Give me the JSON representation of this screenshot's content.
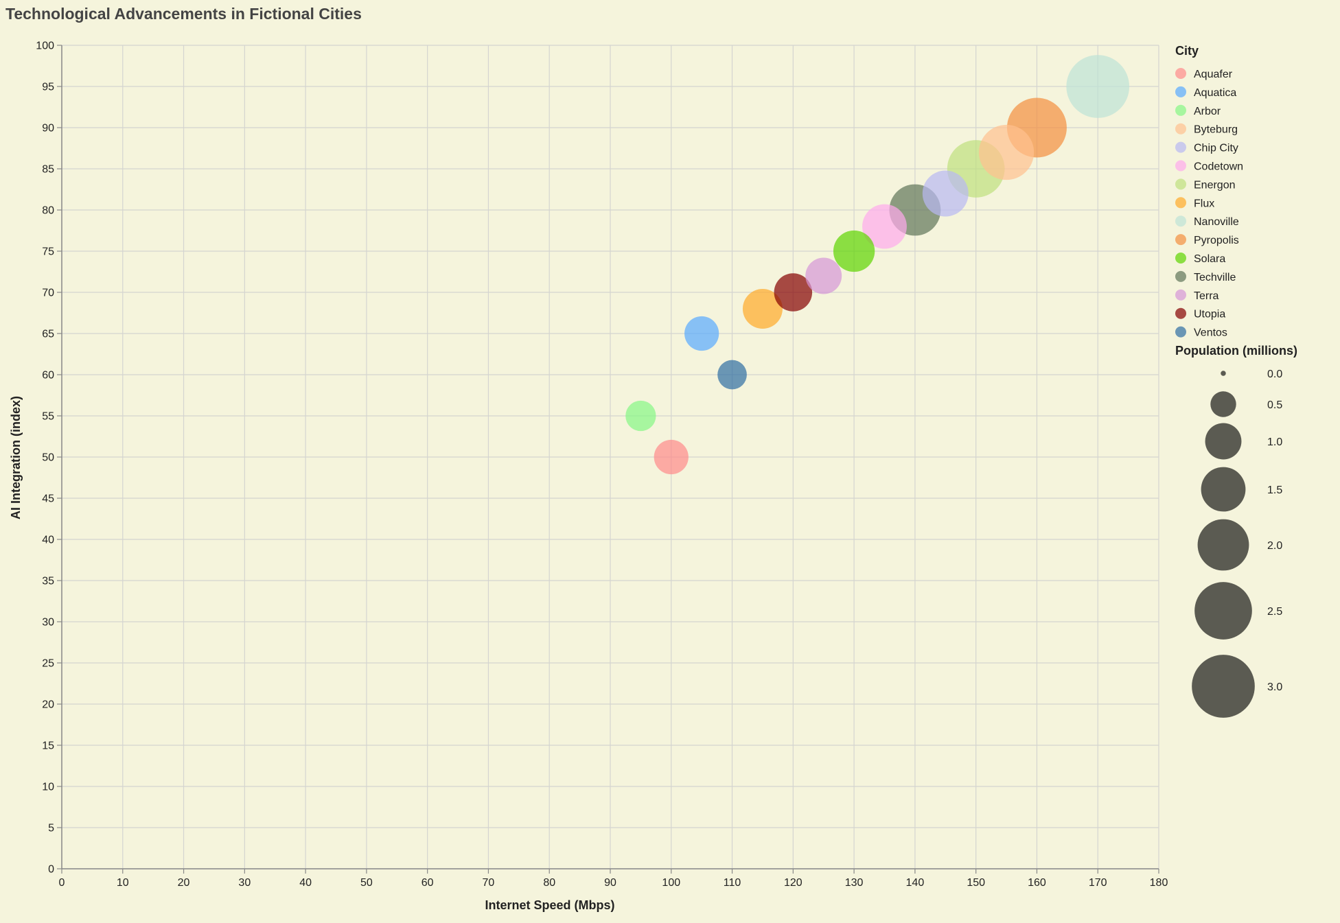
{
  "chart_data": {
    "type": "scatter",
    "title": "Technological Advancements in Fictional Cities",
    "xlabel": "Internet Speed (Mbps)",
    "ylabel": "AI Integration (index)",
    "xlim": [
      0,
      180
    ],
    "ylim": [
      0,
      100
    ],
    "x_ticks": [
      0,
      10,
      20,
      30,
      40,
      50,
      60,
      70,
      80,
      90,
      100,
      110,
      120,
      130,
      140,
      150,
      160,
      170,
      180
    ],
    "y_ticks": [
      0,
      5,
      10,
      15,
      20,
      25,
      30,
      35,
      40,
      45,
      50,
      55,
      60,
      65,
      70,
      75,
      80,
      85,
      90,
      95,
      100
    ],
    "grid": true,
    "legend_position": "right",
    "color_legend_title": "City",
    "size_legend_title": "Population (millions)",
    "size_legend_values": [
      0.0,
      0.5,
      1.0,
      1.5,
      2.0,
      2.5,
      3.0
    ],
    "size_legend_labels": [
      "0.0",
      "0.5",
      "1.0",
      "1.5",
      "2.0",
      "2.5",
      "3.0"
    ],
    "size_max": 3.0,
    "point_opacity": 0.7,
    "points": [
      {
        "city": "Aquafer",
        "internet_speed": 100,
        "ai_integration": 50,
        "population": 0.9,
        "color": "#ff8a8a"
      },
      {
        "city": "Aquatica",
        "internet_speed": 105,
        "ai_integration": 65,
        "population": 0.9,
        "color": "#58a9ff"
      },
      {
        "city": "Arbor",
        "internet_speed": 95,
        "ai_integration": 55,
        "population": 0.7,
        "color": "#86f784"
      },
      {
        "city": "Byteburg",
        "internet_speed": 155,
        "ai_integration": 87,
        "population": 2.3,
        "color": "#ffc18f"
      },
      {
        "city": "Chip City",
        "internet_speed": 145,
        "ai_integration": 82,
        "population": 1.6,
        "color": "#b8b8f2"
      },
      {
        "city": "Codetown",
        "internet_speed": 135,
        "ai_integration": 78,
        "population": 1.5,
        "color": "#ffa9ec"
      },
      {
        "city": "Energon",
        "internet_speed": 150,
        "ai_integration": 85,
        "population": 2.5,
        "color": "#bfe07e"
      },
      {
        "city": "Flux",
        "internet_speed": 115,
        "ai_integration": 68,
        "population": 1.2,
        "color": "#ffaa28"
      },
      {
        "city": "Nanoville",
        "internet_speed": 170,
        "ai_integration": 95,
        "population": 3.0,
        "color": "#bde3d6"
      },
      {
        "city": "Pyropolis",
        "internet_speed": 160,
        "ai_integration": 90,
        "population": 2.7,
        "color": "#f38e3f"
      },
      {
        "city": "Solara",
        "internet_speed": 130,
        "ai_integration": 75,
        "population": 1.3,
        "color": "#5ed400"
      },
      {
        "city": "Techville",
        "internet_speed": 140,
        "ai_integration": 80,
        "population": 2.0,
        "color": "#5f7558"
      },
      {
        "city": "Terra",
        "internet_speed": 125,
        "ai_integration": 72,
        "population": 1.0,
        "color": "#d696d7"
      },
      {
        "city": "Utopia",
        "internet_speed": 120,
        "ai_integration": 70,
        "population": 1.1,
        "color": "#850000"
      },
      {
        "city": "Ventos",
        "internet_speed": 110,
        "ai_integration": 60,
        "population": 0.65,
        "color": "#2f6ea3"
      }
    ]
  }
}
